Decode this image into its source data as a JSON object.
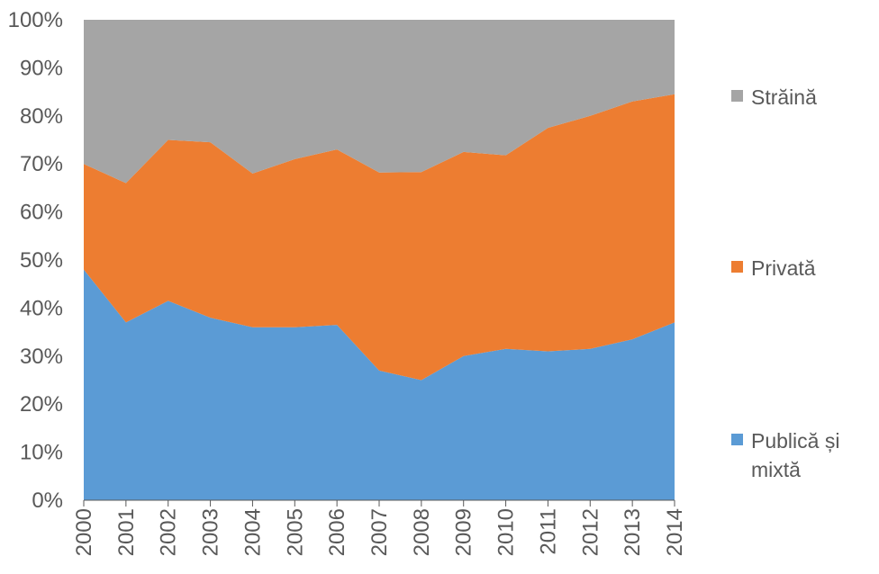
{
  "chart_data": {
    "type": "area",
    "stacked": "percent",
    "categories": [
      "2000",
      "2001",
      "2002",
      "2003",
      "2004",
      "2005",
      "2006",
      "2007",
      "2008",
      "2009",
      "2010",
      "2011",
      "2012",
      "2013",
      "2014"
    ],
    "series": [
      {
        "name": "Publică și mixtă",
        "color": "#5B9BD5",
        "values": [
          48,
          37,
          41.5,
          38,
          36,
          36,
          36.5,
          27,
          25,
          30,
          31.5,
          31,
          31.5,
          33.5,
          37
        ]
      },
      {
        "name": "Privată",
        "color": "#ED7D31",
        "values": [
          22,
          29,
          33.5,
          36.5,
          32,
          35,
          36.5,
          41.2,
          43.3,
          42.5,
          40.3,
          46.5,
          48.5,
          49.5,
          47.5
        ]
      },
      {
        "name": "Străină",
        "color": "#A5A5A5",
        "values": [
          30,
          34,
          25,
          25.5,
          32,
          29,
          27,
          31.8,
          31.7,
          27.5,
          28.2,
          22.5,
          20,
          17,
          15.5
        ]
      }
    ],
    "yticks": [
      "0%",
      "10%",
      "20%",
      "30%",
      "40%",
      "50%",
      "60%",
      "70%",
      "80%",
      "90%",
      "100%"
    ],
    "ylim": [
      0,
      100
    ],
    "legend_position": "right",
    "legend_order": [
      "Străină",
      "Privată",
      "Publică și mixtă"
    ],
    "xtick_rotation": "vertical",
    "grid": false,
    "title": "",
    "xlabel": "",
    "ylabel": ""
  },
  "legend": {
    "items": [
      {
        "label": "Străină",
        "color": "#A5A5A5"
      },
      {
        "label": "Privată",
        "color": "#ED7D31"
      },
      {
        "label": "Publică și mixtă",
        "color": "#5B9BD5"
      }
    ]
  }
}
